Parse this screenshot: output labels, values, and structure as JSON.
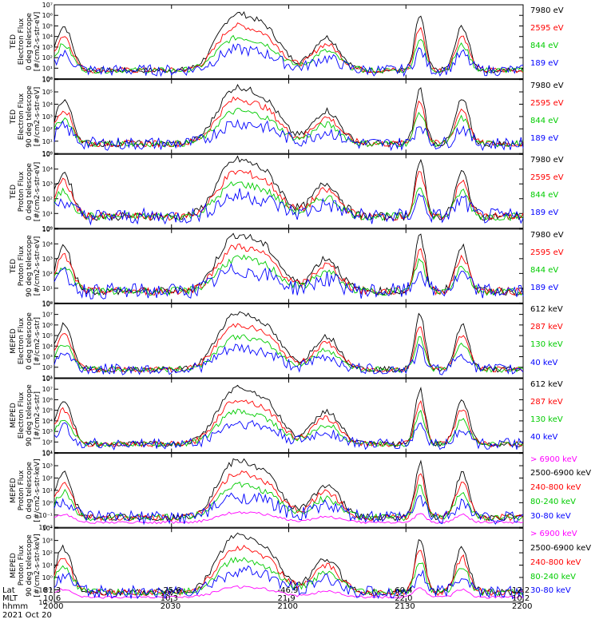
{
  "chart_data": [
    {
      "type": "line",
      "ylabel": [
        "TED",
        "Electron Flux",
        "0 deg telescope",
        "[#/cm2-s-str-eV]"
      ],
      "ylim_exp": [
        0,
        7
      ],
      "yticks": [
        "10⁰",
        "10¹",
        "10²",
        "10³",
        "10⁴",
        "10⁵",
        "10⁶",
        "10⁷"
      ],
      "series": [
        {
          "name": "7980 eV",
          "color": "#000000"
        },
        {
          "name": "2595 eV",
          "color": "#ff0000"
        },
        {
          "name": "844 eV",
          "color": "#00cc00"
        },
        {
          "name": "189 eV",
          "color": "#0000ff"
        }
      ]
    },
    {
      "type": "line",
      "ylabel": [
        "TED",
        "Electron Flux",
        "90 deg telescope",
        "[#/cm2-s-str-eV]"
      ],
      "ylim_exp": [
        0,
        6
      ],
      "yticks": [
        "10⁰",
        "10¹",
        "10²",
        "10³",
        "10⁴",
        "10⁵",
        "10⁶"
      ],
      "series": [
        {
          "name": "7980 eV",
          "color": "#000000"
        },
        {
          "name": "2595 eV",
          "color": "#ff0000"
        },
        {
          "name": "844 eV",
          "color": "#00cc00"
        },
        {
          "name": "189 eV",
          "color": "#0000ff"
        }
      ]
    },
    {
      "type": "line",
      "ylabel": [
        "TED",
        "Proton Flux",
        "0 deg telescope",
        "[#/cm2-s-str-eV]"
      ],
      "ylim_exp": [
        0,
        5
      ],
      "yticks": [
        "10⁰",
        "10¹",
        "10²",
        "10³",
        "10⁴",
        "10⁵"
      ],
      "series": [
        {
          "name": "7980 eV",
          "color": "#000000"
        },
        {
          "name": "2595 eV",
          "color": "#ff0000"
        },
        {
          "name": "844 eV",
          "color": "#00cc00"
        },
        {
          "name": "189 eV",
          "color": "#0000ff"
        }
      ]
    },
    {
      "type": "line",
      "ylabel": [
        "TED",
        "Proton Flux",
        "90 deg telescope",
        "[#/cm2-s-str-eV]"
      ],
      "ylim_exp": [
        0,
        5
      ],
      "yticks": [
        "10⁰",
        "10¹",
        "10²",
        "10³",
        "10⁴",
        "10⁵"
      ],
      "series": [
        {
          "name": "7980 eV",
          "color": "#000000"
        },
        {
          "name": "2595 eV",
          "color": "#ff0000"
        },
        {
          "name": "844 eV",
          "color": "#00cc00"
        },
        {
          "name": "189 eV",
          "color": "#0000ff"
        }
      ]
    },
    {
      "type": "line",
      "ylabel": [
        "MEPED",
        "Electron Flux",
        "0 deg telescope",
        "[#/cm2-s-str]"
      ],
      "ylim_exp": [
        1,
        8
      ],
      "yticks": [
        "10¹",
        "10²",
        "10³",
        "10⁴",
        "10⁵",
        "10⁶",
        "10⁷",
        "10⁸"
      ],
      "series": [
        {
          "name": "612 keV",
          "color": "#000000"
        },
        {
          "name": "287 keV",
          "color": "#ff0000"
        },
        {
          "name": "130 keV",
          "color": "#00cc00"
        },
        {
          "name": "40 keV",
          "color": "#0000ff"
        }
      ]
    },
    {
      "type": "line",
      "ylabel": [
        "MEPED",
        "Electron Flux",
        "90 deg telescope",
        "[#/cm2-s-str]"
      ],
      "ylim_exp": [
        1,
        8
      ],
      "yticks": [
        "10¹",
        "10²",
        "10³",
        "10⁴",
        "10⁵",
        "10⁶",
        "10⁷",
        "10⁸"
      ],
      "series": [
        {
          "name": "612 keV",
          "color": "#000000"
        },
        {
          "name": "287 keV",
          "color": "#ff0000"
        },
        {
          "name": "130 keV",
          "color": "#00cc00"
        },
        {
          "name": "40 keV",
          "color": "#0000ff"
        }
      ]
    },
    {
      "type": "line",
      "ylabel": [
        "MEPED",
        "Proton Flux",
        "0 deg telescope",
        "[#/cm2-s-str-keV]"
      ],
      "ylim_exp": [
        -2,
        4
      ],
      "yticks": [
        "10⁻²",
        "10⁻¹",
        "10⁰",
        "10¹",
        "10²",
        "10³",
        "10⁴"
      ],
      "series": [
        {
          "name": "> 6900 keV",
          "color": "#ff00ff"
        },
        {
          "name": "2500-6900 keV",
          "color": "#000000"
        },
        {
          "name": "240-800 keV",
          "color": "#ff0000"
        },
        {
          "name": "80-240 keV",
          "color": "#00cc00"
        },
        {
          "name": "30-80 keV",
          "color": "#0000ff"
        }
      ]
    },
    {
      "type": "line",
      "ylabel": [
        "MEPED",
        "Proton Flux",
        "90 deg telescope",
        "[#/cm2-s-str-keV]"
      ],
      "ylim_exp": [
        -2,
        4
      ],
      "yticks": [
        "10⁻²",
        "10⁻¹",
        "10⁰",
        "10¹",
        "10²",
        "10³",
        "10⁴"
      ],
      "series": [
        {
          "name": "> 6900 keV",
          "color": "#ff00ff"
        },
        {
          "name": "2500-6900 keV",
          "color": "#000000"
        },
        {
          "name": "240-800 keV",
          "color": "#ff0000"
        },
        {
          "name": "80-240 keV",
          "color": "#00cc00"
        },
        {
          "name": "30-80 keV",
          "color": "#0000ff"
        }
      ]
    }
  ],
  "x_axis": {
    "row_labels": [
      "Lat",
      "MLT",
      "hhmm"
    ],
    "ticks": [
      {
        "lat": "81.3",
        "mlt": "10.6",
        "hhmm": "2000"
      },
      {
        "lat": "-25.6",
        "mlt": "10.3",
        "hhmm": "2030"
      },
      {
        "lat": "-46.9",
        "mlt": "21.9",
        "hhmm": "2100"
      },
      {
        "lat": "60.4",
        "mlt": "22.0",
        "hhmm": "2130"
      },
      {
        "lat": "12.2",
        "mlt": "10.2",
        "hhmm": "2200"
      }
    ],
    "date": "2021 Oct 20"
  }
}
